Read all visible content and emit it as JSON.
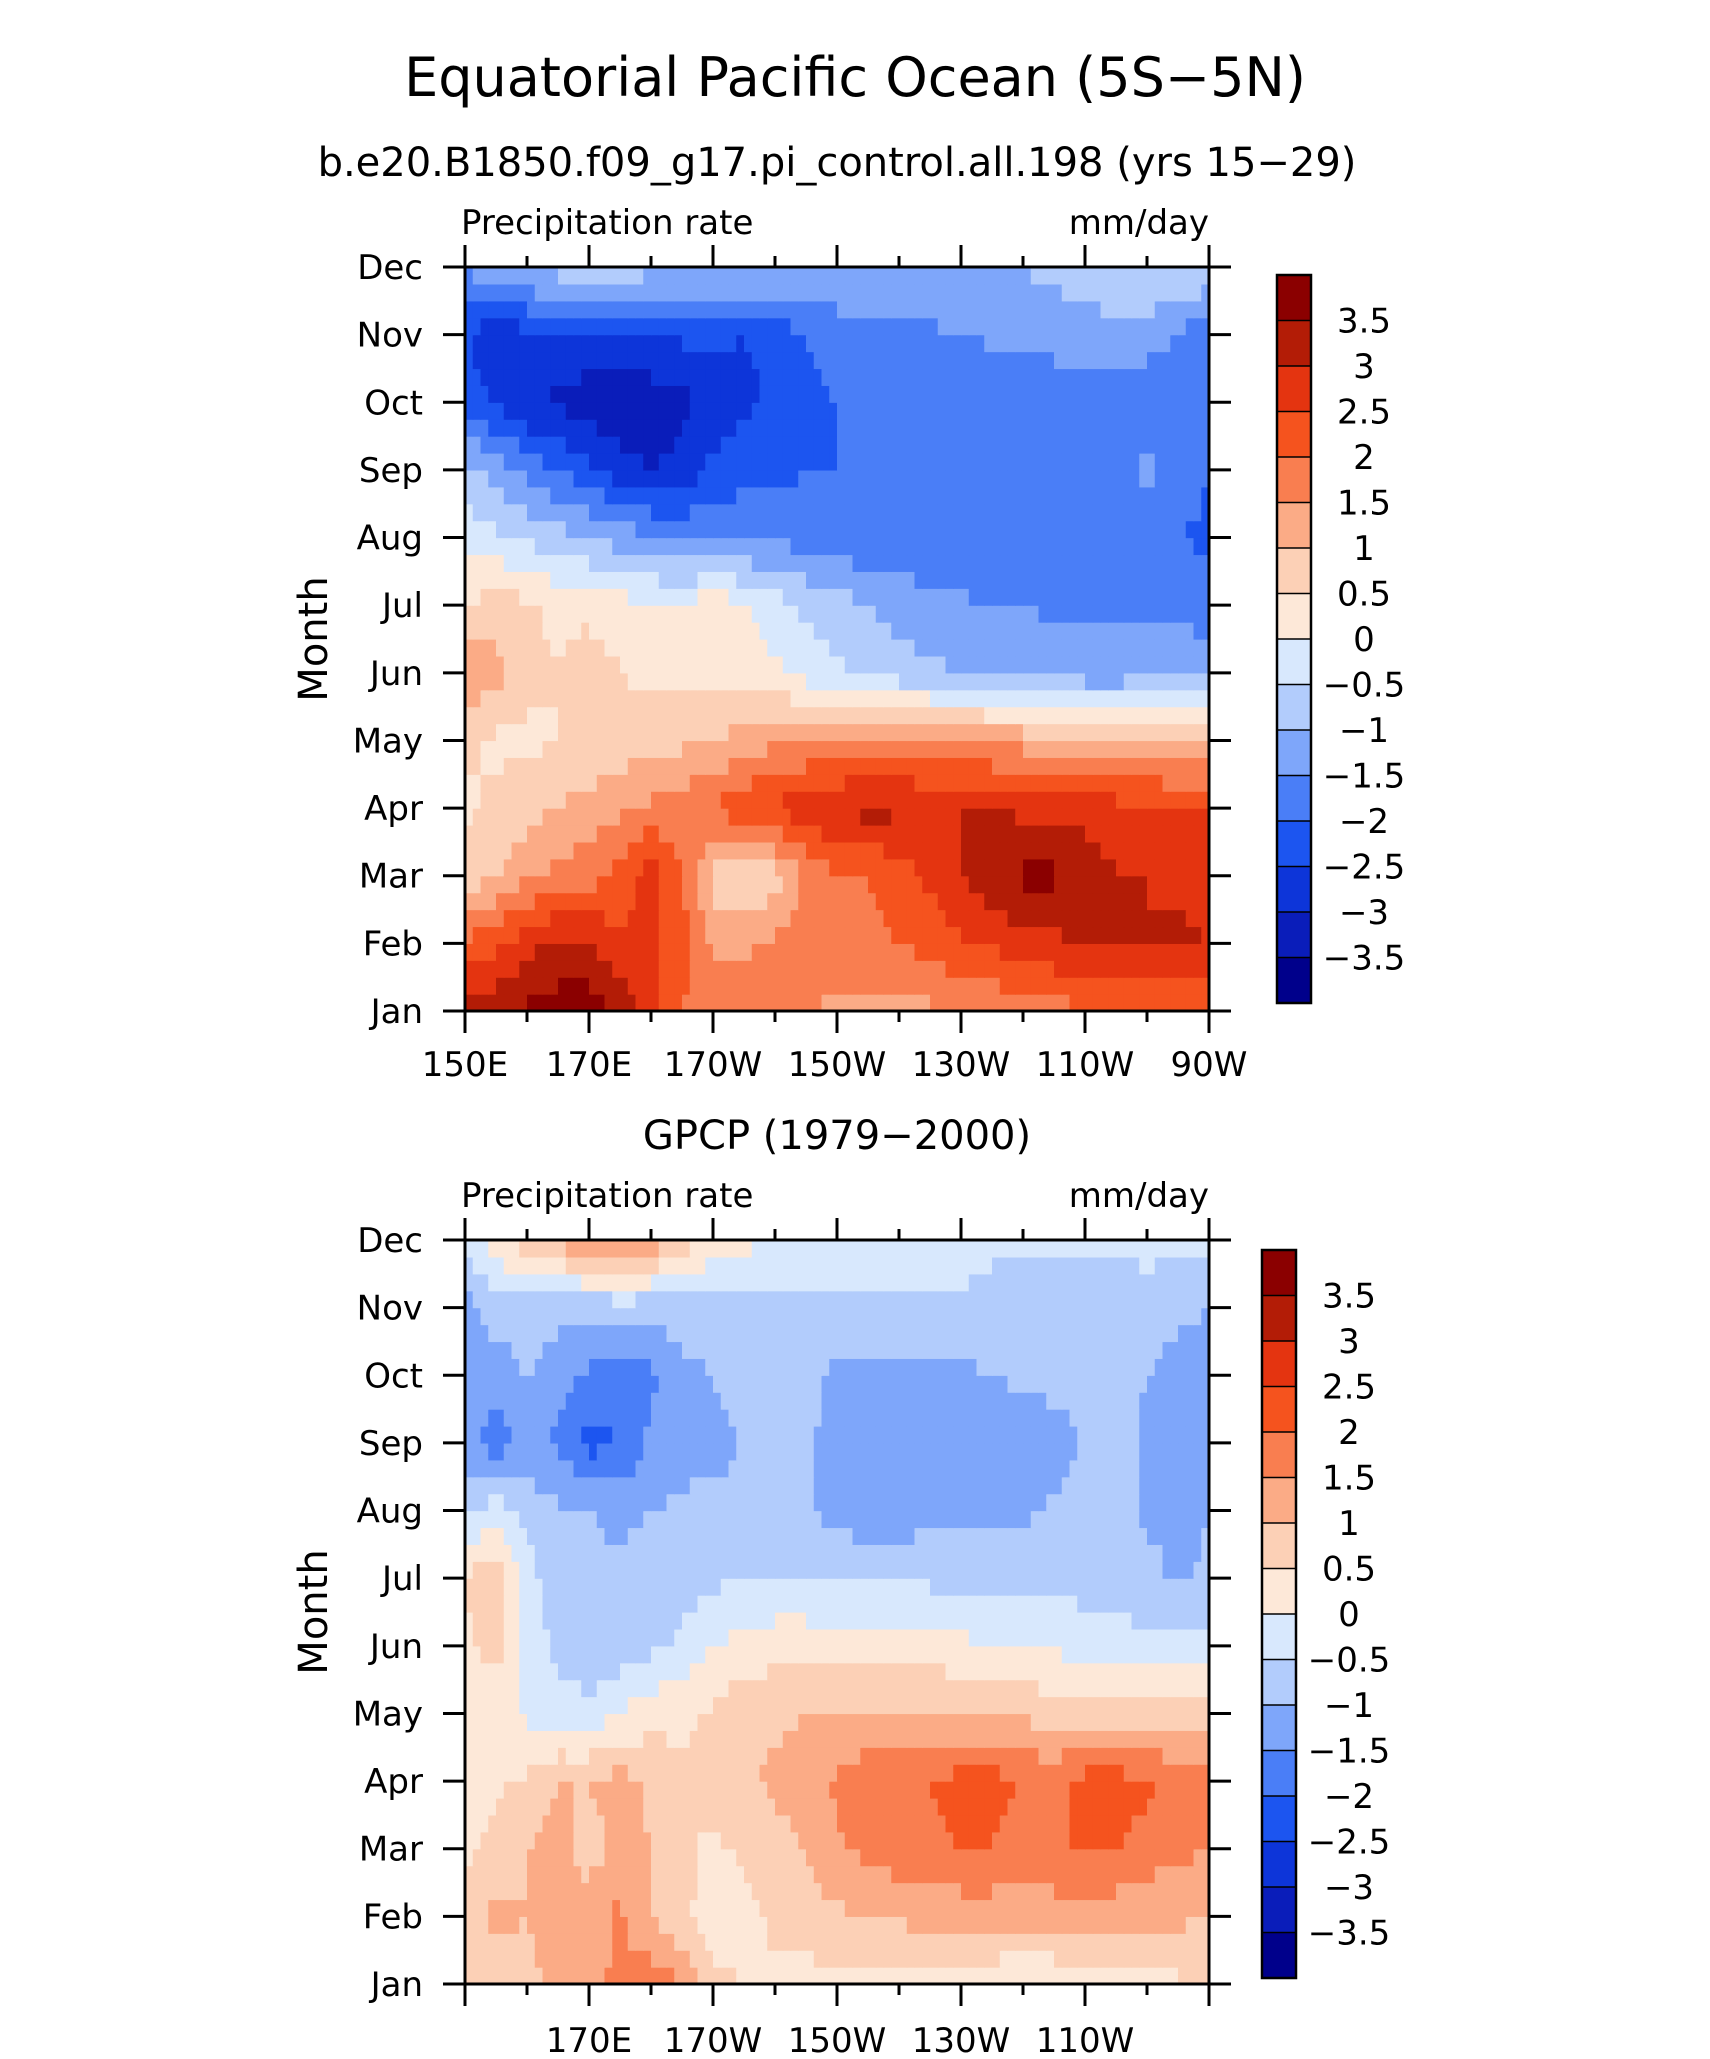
{
  "title": "Equatorial Pacific Ocean (5S−5N)",
  "chart_data": [
    {
      "type": "heatmap",
      "title": "b.e20.B1850.f09_g17.pi_control.all.198 (yrs 15−29)",
      "left_label": "Precipitation rate",
      "right_label": "mm/day",
      "ylabel": "Month",
      "x_ticks": [
        "150E",
        "170E",
        "170W",
        "150W",
        "130W",
        "110W",
        "90W"
      ],
      "y_ticks": [
        "Jan",
        "Feb",
        "Mar",
        "Apr",
        "May",
        "Jun",
        "Jul",
        "Aug",
        "Sep",
        "Oct",
        "Nov",
        "Dec"
      ],
      "x_cols": [
        "150E",
        "155E",
        "160E",
        "165E",
        "170E",
        "175E",
        "180",
        "175W",
        "170W",
        "165W",
        "160W",
        "155W",
        "150W",
        "145W",
        "140W",
        "135W",
        "130W",
        "125W",
        "120W",
        "115W",
        "110W",
        "105W",
        "100W",
        "95W",
        "90W"
      ],
      "values": [
        [
          3.2,
          3.4,
          3.6,
          3.7,
          3.8,
          3.4,
          2.6,
          2.0,
          1.8,
          1.9,
          1.6,
          1.5,
          1.4,
          1.4,
          1.4,
          1.4,
          1.5,
          1.6,
          1.7,
          1.8,
          1.9,
          1.9,
          2.0,
          2.0,
          2.0
        ],
        [
          2.1,
          2.4,
          2.8,
          3.2,
          3.0,
          2.6,
          2.6,
          2.2,
          1.4,
          1.4,
          1.6,
          1.8,
          1.8,
          1.8,
          2.0,
          2.2,
          2.4,
          2.6,
          2.8,
          2.9,
          3.0,
          3.0,
          3.0,
          3.1,
          3.0
        ],
        [
          0.6,
          1.0,
          1.4,
          1.6,
          1.8,
          2.2,
          2.8,
          2.0,
          0.8,
          0.4,
          0.8,
          1.6,
          2.0,
          2.0,
          2.2,
          2.6,
          3.0,
          3.4,
          3.6,
          3.6,
          3.4,
          3.0,
          3.0,
          2.9,
          2.7
        ],
        [
          0.4,
          0.6,
          0.8,
          1.0,
          1.2,
          1.4,
          1.6,
          1.8,
          2.0,
          2.4,
          2.6,
          2.8,
          3.0,
          3.2,
          3.1,
          3.0,
          3.0,
          3.0,
          2.9,
          2.8,
          2.8,
          2.7,
          2.7,
          2.6,
          2.5
        ],
        [
          0.6,
          0.4,
          0.4,
          0.5,
          0.6,
          0.7,
          0.8,
          0.9,
          1.0,
          1.2,
          1.4,
          1.5,
          1.6,
          1.6,
          1.6,
          1.5,
          1.5,
          1.4,
          1.3,
          1.2,
          1.1,
          1.0,
          0.9,
          0.9,
          1.0
        ],
        [
          1.4,
          1.2,
          0.6,
          0.5,
          0.9,
          0.5,
          0.4,
          0.3,
          0.3,
          0.2,
          0.1,
          -0.2,
          -0.4,
          -0.6,
          -0.8,
          -0.9,
          -1.0,
          -1.1,
          -1.2,
          -1.3,
          -1.3,
          -1.3,
          -1.2,
          -1.1,
          -1.1
        ],
        [
          0.4,
          0.8,
          0.6,
          0.4,
          0.3,
          0.2,
          0.1,
          0.0,
          0.4,
          0.1,
          -0.3,
          -0.6,
          -0.8,
          -1.0,
          -1.2,
          -1.3,
          -1.4,
          -1.5,
          -1.5,
          -1.6,
          -1.6,
          -1.6,
          -1.6,
          -1.7,
          -1.8
        ],
        [
          -0.2,
          -0.4,
          -0.6,
          -0.8,
          -1.0,
          -1.2,
          -1.4,
          -1.6,
          -1.6,
          -1.6,
          -1.6,
          -1.7,
          -1.8,
          -1.9,
          -1.9,
          -2.0,
          -2.0,
          -2.0,
          -2.0,
          -2.0,
          -2.0,
          -2.0,
          -2.0,
          -2.0,
          -2.1
        ],
        [
          -0.8,
          -1.2,
          -1.6,
          -2.0,
          -2.4,
          -2.8,
          -3.0,
          -2.8,
          -2.4,
          -2.2,
          -2.2,
          -2.0,
          -2.0,
          -2.0,
          -2.0,
          -2.0,
          -2.0,
          -2.0,
          -2.0,
          -1.6,
          -1.5,
          -1.6,
          -1.4,
          -1.6,
          -2.0
        ],
        [
          -2.2,
          -2.6,
          -3.0,
          -3.1,
          -3.3,
          -3.4,
          -3.3,
          -3.2,
          -2.8,
          -2.6,
          -2.4,
          -2.2,
          -2.0,
          -2.0,
          -2.0,
          -2.0,
          -2.0,
          -2.0,
          -2.0,
          -2.0,
          -2.0,
          -2.0,
          -2.0,
          -2.0,
          -2.0
        ],
        [
          -2.4,
          -3.0,
          -2.6,
          -2.4,
          -2.6,
          -2.6,
          -2.5,
          -2.4,
          -2.4,
          -2.5,
          -2.4,
          -2.0,
          -1.8,
          -1.6,
          -1.6,
          -1.6,
          -1.5,
          -1.4,
          -1.3,
          -1.2,
          -1.2,
          -1.1,
          -1.2,
          -1.5,
          -1.9
        ],
        [
          -1.4,
          -1.1,
          -0.9,
          -0.8,
          -0.7,
          -0.7,
          -0.8,
          -0.9,
          -0.8,
          -0.8,
          -0.8,
          -0.9,
          -1.0,
          -1.0,
          -1.0,
          -1.0,
          -1.0,
          -1.0,
          -1.0,
          -0.9,
          -0.8,
          -0.7,
          -0.6,
          -0.6,
          -0.5
        ]
      ]
    },
    {
      "type": "heatmap",
      "title": "GPCP (1979−2000)",
      "left_label": "Precipitation rate",
      "right_label": "mm/day",
      "ylabel": "Month",
      "x_ticks": [
        "170E",
        "170W",
        "150W",
        "130W",
        "110W"
      ],
      "y_ticks": [
        "Jan",
        "Feb",
        "Mar",
        "Apr",
        "May",
        "Jun",
        "Jul",
        "Aug",
        "Sep",
        "Oct",
        "Nov",
        "Dec"
      ],
      "x_cols": [
        "150E",
        "155E",
        "160E",
        "165E",
        "170E",
        "175E",
        "180",
        "175W",
        "170W",
        "165W",
        "160W",
        "155W",
        "150W",
        "145W",
        "140W",
        "135W",
        "130W",
        "125W",
        "120W",
        "115W",
        "110W",
        "105W",
        "100W",
        "95W",
        "90W"
      ],
      "values": [
        [
          0.6,
          0.6,
          0.8,
          1.2,
          1.4,
          1.6,
          1.8,
          1.5,
          0.6,
          0.5,
          0.4,
          0.3,
          0.3,
          0.2,
          0.2,
          0.2,
          0.2,
          0.2,
          -0.2,
          0.1,
          0.2,
          0.2,
          0.3,
          0.4,
          0.6
        ],
        [
          0.6,
          1.2,
          1.0,
          1.4,
          1.2,
          1.6,
          1.0,
          0.6,
          0.3,
          0.3,
          0.6,
          0.8,
          0.9,
          1.0,
          1.1,
          1.2,
          1.2,
          1.2,
          1.3,
          1.2,
          1.2,
          1.2,
          1.1,
          1.1,
          1.0
        ],
        [
          0.4,
          0.6,
          1.0,
          1.2,
          0.8,
          1.2,
          1.0,
          0.6,
          0.4,
          0.6,
          0.8,
          1.0,
          1.4,
          1.6,
          1.8,
          1.9,
          2.0,
          2.0,
          1.6,
          2.0,
          2.0,
          2.0,
          1.8,
          1.6,
          1.5
        ],
        [
          0.2,
          0.4,
          0.6,
          1.0,
          1.0,
          1.2,
          0.9,
          0.6,
          0.7,
          0.9,
          1.1,
          1.3,
          1.6,
          1.8,
          1.9,
          2.0,
          2.2,
          2.2,
          2.0,
          1.8,
          2.2,
          2.2,
          2.1,
          1.9,
          1.8
        ],
        [
          0.2,
          0.2,
          -0.1,
          -0.3,
          -0.4,
          0.0,
          0.3,
          0.4,
          0.6,
          0.8,
          0.9,
          1.0,
          1.0,
          1.1,
          1.1,
          1.1,
          1.0,
          1.0,
          0.9,
          0.8,
          0.8,
          0.8,
          0.7,
          0.7,
          0.7
        ],
        [
          0.4,
          0.7,
          -0.2,
          -0.6,
          -0.8,
          -0.8,
          -0.6,
          -0.4,
          0.0,
          0.2,
          0.3,
          0.3,
          0.3,
          0.3,
          0.2,
          0.2,
          0.1,
          0.0,
          -0.1,
          -0.1,
          -0.2,
          -0.3,
          -0.4,
          -0.4,
          -0.4
        ],
        [
          0.5,
          0.9,
          -0.3,
          -0.8,
          -0.9,
          -0.9,
          -0.8,
          -0.7,
          -0.6,
          -0.5,
          -0.5,
          -0.5,
          -0.6,
          -0.6,
          -0.6,
          -0.6,
          -0.6,
          -0.6,
          -0.6,
          -0.7,
          -0.7,
          -0.7,
          -0.8,
          -1.1,
          -0.9
        ],
        [
          -0.6,
          -0.2,
          -0.7,
          -0.9,
          -1.0,
          -1.1,
          -1.0,
          -0.9,
          -0.9,
          -0.9,
          -0.9,
          -0.9,
          -1.2,
          -1.3,
          -1.3,
          -1.2,
          -1.2,
          -1.2,
          -1.1,
          -0.9,
          -0.8,
          -0.7,
          -1.1,
          -1.2,
          -1.0
        ],
        [
          -1.2,
          -1.8,
          -1.4,
          -1.6,
          -2.2,
          -2.0,
          -1.4,
          -1.2,
          -1.1,
          -1.0,
          -0.9,
          -0.9,
          -1.2,
          -1.3,
          -1.3,
          -1.3,
          -1.3,
          -1.3,
          -1.3,
          -1.3,
          -0.9,
          -0.8,
          -1.1,
          -1.2,
          -1.2
        ],
        [
          -1.4,
          -1.2,
          -1.0,
          -1.2,
          -1.6,
          -1.8,
          -1.6,
          -1.1,
          -1.0,
          -0.9,
          -0.9,
          -0.9,
          -1.1,
          -1.2,
          -1.2,
          -1.2,
          -1.1,
          -1.0,
          -0.9,
          -0.8,
          -0.8,
          -0.8,
          -1.0,
          -1.2,
          -1.1
        ],
        [
          -1.2,
          -0.8,
          -0.8,
          -0.9,
          -0.9,
          -0.8,
          -0.8,
          -0.8,
          -0.8,
          -0.7,
          -0.7,
          -0.6,
          -0.6,
          -0.6,
          -0.6,
          -0.6,
          -0.6,
          -0.7,
          -0.7,
          -0.7,
          -0.7,
          -0.8,
          -0.8,
          -0.9,
          -1.0
        ],
        [
          -0.4,
          0.4,
          0.8,
          1.2,
          1.6,
          1.8,
          1.4,
          0.8,
          0.4,
          0.2,
          -0.1,
          -0.2,
          -0.3,
          -0.3,
          -0.3,
          -0.3,
          -0.3,
          -0.4,
          -0.4,
          -0.4,
          -0.4,
          -0.4,
          -0.3,
          -0.3,
          -0.3
        ]
      ]
    }
  ],
  "colorbar": {
    "labels": [
      "3.5",
      "3",
      "2.5",
      "2",
      "1.5",
      "1",
      "0.5",
      "0",
      "−0.5",
      "−1",
      "−1.5",
      "−2",
      "−2.5",
      "−3",
      "−3.5"
    ],
    "levels": [
      -3.5,
      -3,
      -2.5,
      -2,
      -1.5,
      -1,
      -0.5,
      0,
      0.5,
      1,
      1.5,
      2,
      2.5,
      3,
      3.5
    ],
    "colors": [
      "#00008b",
      "#0a1dba",
      "#0d35d9",
      "#1c55f0",
      "#4a7ef7",
      "#7ea6fa",
      "#b2ccfc",
      "#d8e8fd",
      "#fde8d8",
      "#fcd0b6",
      "#fbab86",
      "#f97e50",
      "#f5531e",
      "#e43410",
      "#b31c06",
      "#8b0000"
    ]
  }
}
